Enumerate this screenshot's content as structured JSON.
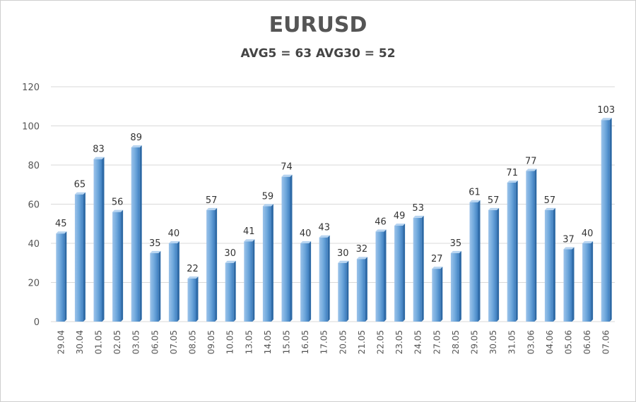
{
  "chart_data": {
    "type": "bar",
    "title": "EURUSD",
    "subtitle": "AVG5 = 63 AVG30 = 52",
    "xlabel": "",
    "ylabel": "",
    "ylim": [
      0,
      120
    ],
    "yticks": [
      0,
      20,
      40,
      60,
      80,
      100,
      120
    ],
    "grid": true,
    "categories": [
      "29.04",
      "30.04",
      "01.05",
      "02.05",
      "03.05",
      "06.05",
      "07.05",
      "08.05",
      "09.05",
      "10.05",
      "13.05",
      "14.05",
      "15.05",
      "16.05",
      "17.05",
      "20.05",
      "21.05",
      "22.05",
      "23.05",
      "24.05",
      "27.05",
      "28.05",
      "29.05",
      "30.05",
      "31.05",
      "03.06",
      "04.06",
      "05.06",
      "06.06",
      "07.06"
    ],
    "values": [
      45,
      65,
      83,
      56,
      89,
      35,
      40,
      22,
      57,
      30,
      41,
      59,
      74,
      40,
      43,
      30,
      32,
      46,
      49,
      53,
      27,
      35,
      61,
      57,
      71,
      77,
      57,
      37,
      40,
      103
    ],
    "bar_color": "#5b9bd5"
  }
}
